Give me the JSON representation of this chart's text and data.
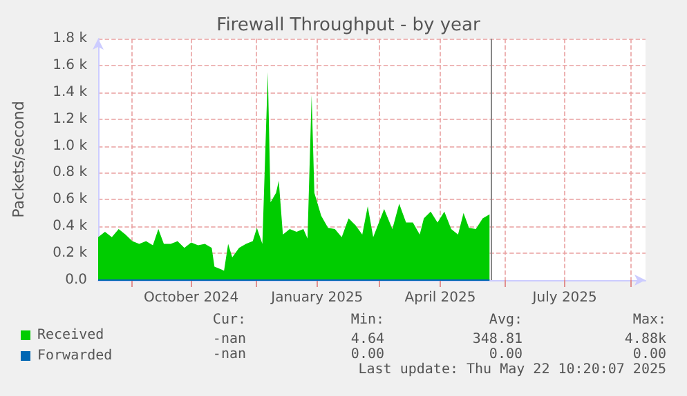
{
  "chart_data": {
    "type": "area",
    "title": "Firewall Throughput - by year",
    "ylabel": "Packets/second",
    "x": [
      "2024-08-08",
      "2024-08-13",
      "2024-08-18",
      "2024-08-23",
      "2024-08-28",
      "2024-09-02",
      "2024-09-07",
      "2024-09-12",
      "2024-09-17",
      "2024-09-21",
      "2024-09-25",
      "2024-09-30",
      "2024-10-05",
      "2024-10-10",
      "2024-10-15",
      "2024-10-20",
      "2024-10-25",
      "2024-10-30",
      "2024-11-01",
      "2024-11-06",
      "2024-11-08",
      "2024-11-11",
      "2024-11-14",
      "2024-11-19",
      "2024-11-24",
      "2024-11-29",
      "2024-12-02",
      "2024-12-06",
      "2024-12-10",
      "2024-12-12",
      "2024-12-16",
      "2024-12-18",
      "2024-12-21",
      "2024-12-26",
      "2024-12-31",
      "2025-01-05",
      "2025-01-08",
      "2025-01-11",
      "2025-01-13",
      "2025-01-18",
      "2025-01-23",
      "2025-01-28",
      "2025-02-02",
      "2025-02-07",
      "2025-02-12",
      "2025-02-17",
      "2025-02-21",
      "2025-02-25",
      "2025-03-05",
      "2025-03-11",
      "2025-03-16",
      "2025-03-21",
      "2025-03-26",
      "2025-03-31",
      "2025-04-03",
      "2025-04-08",
      "2025-04-13",
      "2025-04-18",
      "2025-04-23",
      "2025-04-28",
      "2025-05-02",
      "2025-05-06",
      "2025-05-11",
      "2025-05-16",
      "2025-05-21"
    ],
    "series": [
      {
        "name": "Received",
        "color": "#00cc00",
        "values": [
          320,
          360,
          320,
          380,
          340,
          290,
          270,
          290,
          260,
          380,
          270,
          270,
          290,
          240,
          280,
          260,
          270,
          240,
          100,
          80,
          70,
          270,
          170,
          240,
          270,
          290,
          390,
          270,
          1550,
          580,
          650,
          740,
          340,
          380,
          360,
          380,
          310,
          1380,
          650,
          480,
          390,
          380,
          320,
          460,
          410,
          340,
          550,
          320,
          530,
          380,
          570,
          430,
          430,
          340,
          460,
          510,
          430,
          510,
          380,
          340,
          500,
          390,
          380,
          460,
          490
        ]
      },
      {
        "name": "Forwarded",
        "color": "#0066b3",
        "type": "line",
        "x": [
          "2024-08-08",
          "2025-05-21"
        ],
        "values": [
          0,
          0
        ]
      }
    ],
    "xlim": [
      "2024-08-08",
      "2025-09-12"
    ],
    "xticks": [
      {
        "value": "2024-09-01",
        "label": null
      },
      {
        "value": "2024-10-15",
        "label": "October 2024"
      },
      {
        "value": "2024-12-01",
        "label": null
      },
      {
        "value": "2025-01-15",
        "label": "January 2025"
      },
      {
        "value": "2025-03-01",
        "label": null
      },
      {
        "value": "2025-04-15",
        "label": "April 2025"
      },
      {
        "value": "2025-06-01",
        "label": null
      },
      {
        "value": "2025-07-15",
        "label": "July 2025"
      },
      {
        "value": "2025-09-01",
        "label": null
      }
    ],
    "ylim": [
      0,
      1800
    ],
    "yticks": [
      {
        "value": 0,
        "label": "0.0"
      },
      {
        "value": 200,
        "label": "0.2 k"
      },
      {
        "value": 400,
        "label": "0.4 k"
      },
      {
        "value": 600,
        "label": "0.6 k"
      },
      {
        "value": 800,
        "label": "0.8 k"
      },
      {
        "value": 1000,
        "label": "1.0 k"
      },
      {
        "value": 1200,
        "label": "1.2 k"
      },
      {
        "value": 1400,
        "label": "1.4 k"
      },
      {
        "value": 1600,
        "label": "1.6 k"
      },
      {
        "value": 1800,
        "label": "1.8 k"
      }
    ],
    "ref_lines": [
      {
        "axis": "x",
        "value": "2025-05-22",
        "color": "#888888"
      }
    ],
    "grid": true,
    "legend": "bottom left",
    "marker": "none",
    "annotations": [
      "Cur:",
      "Min:",
      "Avg:",
      "Max:",
      "-nan",
      "4.64",
      "348.81",
      "4.88k",
      "-nan",
      "0.00",
      "0.00",
      "0.00",
      "Last update: Thu May 22 10:20:07 2025"
    ]
  }
}
